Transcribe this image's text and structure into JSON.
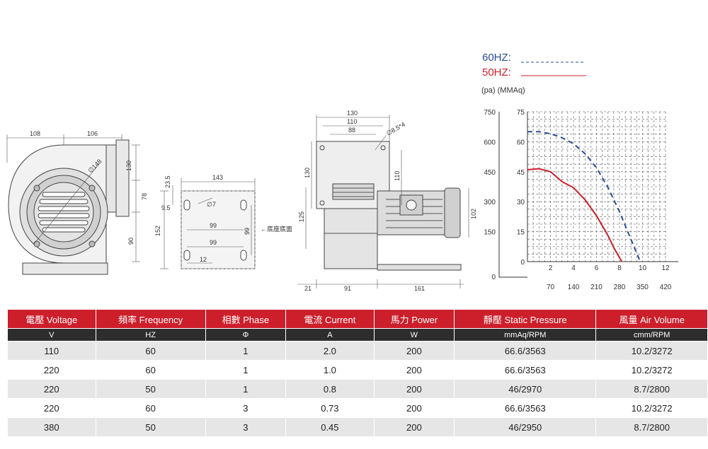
{
  "legend": {
    "hz60": "60HZ:",
    "hz50": "50HZ:",
    "units": "(pa) (MMAq)",
    "color60": "#2a4d8f",
    "color50": "#cc1f2b"
  },
  "chart_data": {
    "type": "line",
    "title": "",
    "ylabel_pa_ticks": [
      "750",
      "600",
      "450",
      "300",
      "150",
      "0"
    ],
    "ylabel_mmaq_ticks": [
      "75",
      "60",
      "45",
      "30",
      "15",
      "0"
    ],
    "x_cmm_ticks": [
      "2",
      "4",
      "6",
      "8",
      "10",
      "12"
    ],
    "x_cfm_ticks": [
      "70",
      "140",
      "210",
      "280",
      "350",
      "420"
    ],
    "x_unit_cmm": "(CMM)",
    "x_unit_cfm": "(CFM)",
    "xlim": [
      0,
      12
    ],
    "ylim": [
      0,
      75
    ],
    "grid": true,
    "series": [
      {
        "name": "60HZ",
        "style": "dashed",
        "color": "#2a4d8f",
        "x": [
          0,
          1,
          2,
          3,
          4,
          5,
          6,
          7,
          8,
          9,
          9.8
        ],
        "y": [
          65,
          65,
          64,
          62,
          59,
          54,
          47,
          37,
          25,
          11,
          0
        ]
      },
      {
        "name": "50HZ",
        "style": "solid",
        "color": "#cc1f2b",
        "x": [
          0,
          1,
          2,
          3,
          4,
          5,
          6,
          7,
          7.5,
          8,
          8.2
        ],
        "y": [
          46,
          46.5,
          45,
          40,
          37,
          31,
          23,
          13,
          7,
          2,
          0
        ]
      }
    ]
  },
  "drawings": {
    "front": {
      "d108": "108",
      "d106": "106",
      "d130": "130",
      "d78": "78",
      "d90": "90",
      "dia": "∅148"
    },
    "base": {
      "d143": "143",
      "d23": "23.5",
      "d9": "9.5",
      "dia7": "∅7",
      "d99a": "99",
      "d99b": "99",
      "d99c": "99",
      "d152": "152",
      "d12": "12",
      "note": "←底座底面"
    },
    "side": {
      "d130": "130",
      "d110": "110",
      "d88": "88",
      "hole": "∅8.5*4",
      "d130v": "130",
      "d110v": "110",
      "d125": "125",
      "d102": "102",
      "d21": "21",
      "d91": "91",
      "d161": "161"
    }
  },
  "table": {
    "headers": [
      "電壓 Voltage",
      "頻率 Frequency",
      "相數 Phase",
      "電流 Current",
      "馬力 Power",
      "靜壓 Static Pressure",
      "風量 Air Volume"
    ],
    "units": [
      "V",
      "HZ",
      "Φ",
      "A",
      "W",
      "mmAq/RPM",
      "cmm/RPM"
    ],
    "rows": [
      [
        "110",
        "60",
        "1",
        "2.0",
        "200",
        "66.6/3563",
        "10.2/3272"
      ],
      [
        "220",
        "60",
        "1",
        "1.0",
        "200",
        "66.6/3563",
        "10.2/3272"
      ],
      [
        "220",
        "50",
        "1",
        "0.8",
        "200",
        "46/2970",
        "8.7/2800"
      ],
      [
        "220",
        "60",
        "3",
        "0.73",
        "200",
        "66.6/3563",
        "10.2/3272"
      ],
      [
        "380",
        "50",
        "3",
        "0.45",
        "200",
        "46/2950",
        "8.7/2800"
      ]
    ]
  }
}
